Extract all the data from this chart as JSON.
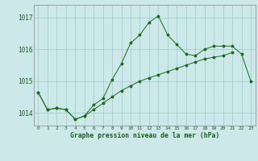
{
  "title": "Graphe pression niveau de la mer (hPa)",
  "xlabel_hours": [
    0,
    1,
    2,
    3,
    4,
    5,
    6,
    7,
    8,
    9,
    10,
    11,
    12,
    13,
    14,
    15,
    16,
    17,
    18,
    19,
    20,
    21,
    22,
    23
  ],
  "ylim": [
    1013.6,
    1017.4
  ],
  "yticks": [
    1014,
    1015,
    1016,
    1017
  ],
  "series_main": [
    1014.65,
    1014.1,
    1014.15,
    1014.1,
    1013.8,
    1013.9,
    1014.25,
    1014.45,
    1015.05,
    1015.55,
    1016.2,
    1016.45,
    1016.85,
    1017.05,
    1016.45,
    1016.15,
    1015.85,
    1015.8,
    1016.0,
    1016.1,
    1016.1,
    1016.1,
    1015.85,
    1015.0
  ],
  "series_envelope": [
    1014.65,
    1014.1,
    1014.15,
    1014.1,
    1013.8,
    1013.9,
    1014.1,
    1014.3,
    1014.5,
    1014.7,
    1014.85,
    1015.0,
    1015.1,
    1015.2,
    1015.3,
    1015.4,
    1015.5,
    1015.6,
    1015.7,
    1015.75,
    1015.8,
    1015.9,
    null,
    null
  ],
  "line_color": "#1a6b1a",
  "bg_color": "#cce8e8",
  "grid_color": "#99cccc",
  "text_color": "#1a5c1a",
  "marker": "*",
  "fontname": "DejaVu Sans Mono"
}
